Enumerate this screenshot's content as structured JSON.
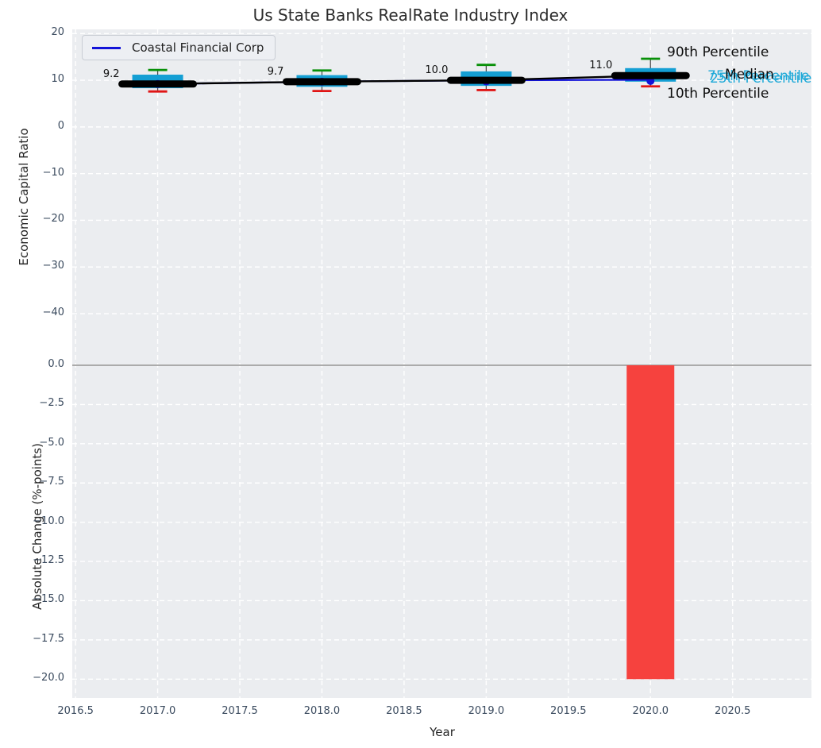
{
  "title": "Us State Banks RealRate Industry Index",
  "legend": {
    "label": "Coastal Financial Corp"
  },
  "annotations": {
    "p90": "90th Percentile",
    "p75": "75th Percentile",
    "median": "Median",
    "p25": "25th Percentile",
    "p10": "10th Percentile"
  },
  "colors": {
    "panel_bg": "#ebedf0",
    "grid": "#ffffff",
    "box_fill": "#149fd4",
    "cap_high": "#089008",
    "cap_low": "#e01515",
    "median_line": "#000000",
    "coastal_line": "#1313d8",
    "bar": "#f6423e",
    "zero_line": "#ababab",
    "tick_text": "#3a4a5e",
    "annotation_cyan": "#1ea9d8"
  },
  "chart_data": [
    {
      "type": "boxplot+line",
      "title": "Us State Banks RealRate Industry Index",
      "ylabel": "Economic Capital Ratio",
      "x": [
        2017,
        2018,
        2019,
        2020
      ],
      "series": [
        {
          "name": "90th Percentile",
          "values": [
            12.2,
            12.1,
            13.3,
            14.6
          ]
        },
        {
          "name": "75th Percentile",
          "values": [
            11.2,
            11.1,
            11.9,
            12.6
          ]
        },
        {
          "name": "Median",
          "values": [
            9.2,
            9.7,
            10.0,
            11.0
          ]
        },
        {
          "name": "25th Percentile",
          "values": [
            8.3,
            8.6,
            8.8,
            9.7
          ]
        },
        {
          "name": "10th Percentile",
          "values": [
            7.6,
            7.7,
            7.9,
            8.7
          ]
        },
        {
          "name": "Coastal Financial Corp",
          "values": [
            9.2,
            9.7,
            10.0,
            10.1
          ]
        }
      ],
      "median_labels": [
        "9.2",
        "9.7",
        "10.0",
        "11.0"
      ],
      "xtick_values": [
        2016.5,
        2017.0,
        2017.5,
        2018.0,
        2018.5,
        2019.0,
        2019.5,
        2020.0,
        2020.5
      ],
      "xtick_labels": [
        "2016.5",
        "2017.0",
        "2017.5",
        "2018.0",
        "2018.5",
        "2019.0",
        "2019.5",
        "2020.0",
        "2020.5"
      ],
      "ytick_values": [
        20,
        10,
        0,
        -10,
        -20,
        -30,
        -40
      ],
      "ytick_labels": [
        "20",
        "10",
        "0",
        "−10",
        "−20",
        "−30",
        "−40"
      ],
      "xlim": [
        2016.48,
        2020.98
      ],
      "ylim": [
        -48.5,
        20.9
      ],
      "grid": "white dashed on light gray",
      "legend_position": "upper left"
    },
    {
      "type": "bar",
      "ylabel": "Absolute Change (%-points)",
      "xlabel": "Year",
      "x": [
        2020
      ],
      "values": [
        -20.0
      ],
      "ytick_values": [
        0,
        -2.5,
        -5,
        -7.5,
        -10,
        -12.5,
        -15,
        -17.5,
        -20
      ],
      "ytick_labels": [
        "0.0",
        "−2.5",
        "−5.0",
        "−7.5",
        "−10.0",
        "−12.5",
        "−15.0",
        "−17.5",
        "−20.0"
      ],
      "ylim": [
        -21.2,
        0.76
      ],
      "grid": "white dashed on light gray"
    }
  ]
}
